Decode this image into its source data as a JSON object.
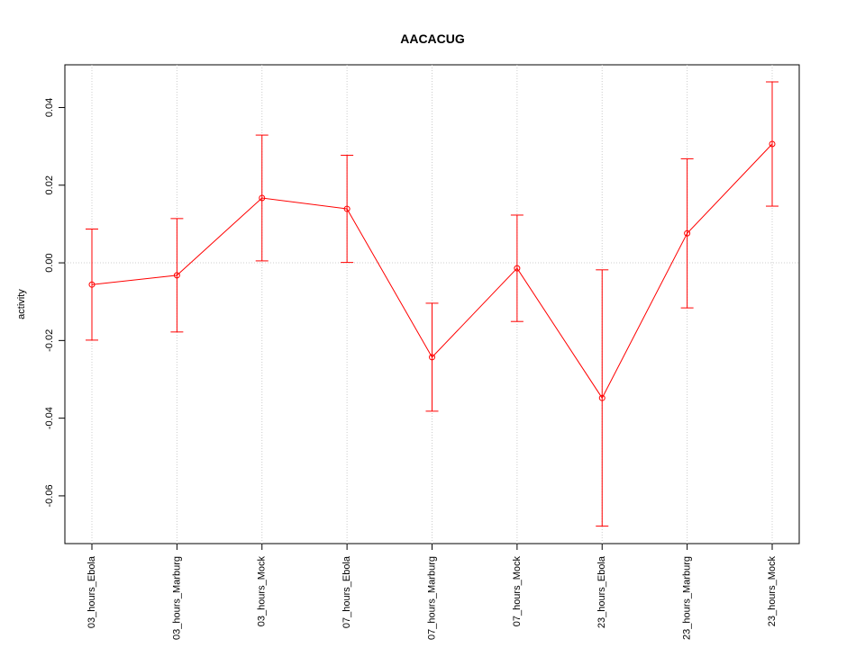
{
  "chart_data": {
    "type": "line",
    "title": "AACACUG",
    "y_label": "activity",
    "categories": [
      "03_hours_Ebola",
      "03_hours_Marburg",
      "03_hours_Mock",
      "07_hours_Ebola",
      "07_hours_Marburg",
      "07_hours_Mock",
      "23_hours_Ebola",
      "23_hours_Marburg",
      "23_hours_Mock"
    ],
    "series": [
      {
        "color": "#ff0000",
        "values": [
          -0.0056,
          -0.0032,
          0.0167,
          0.0139,
          -0.0243,
          -0.0014,
          -0.0348,
          0.0076,
          0.0306
        ],
        "errors": [
          0.0143,
          0.0146,
          0.0162,
          0.0138,
          0.0139,
          0.0137,
          0.033,
          0.0192,
          0.016
        ]
      }
    ],
    "ylim": [
      -0.0723,
      0.051
    ],
    "yticks": [
      -0.06,
      -0.04,
      -0.02,
      {
        "value": 0,
        "label": "0.00"
      },
      0.02,
      0.04
    ],
    "grid": true,
    "reference_line": 0
  }
}
